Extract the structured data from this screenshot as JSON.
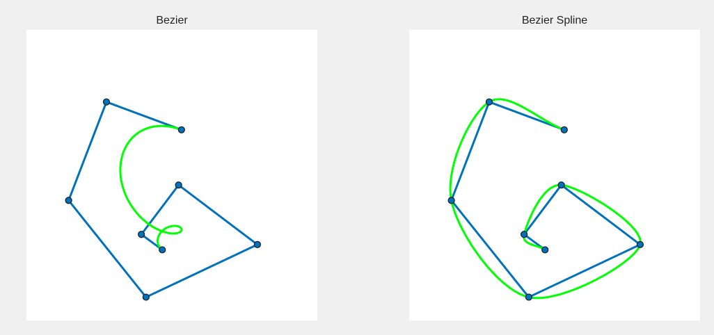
{
  "figure": {
    "background": "#f0f0f0",
    "axes_background": "#ffffff"
  },
  "chart_data": [
    {
      "type": "line",
      "title": "Bezier",
      "grid": false,
      "xlim": [
        0,
        1
      ],
      "ylim": [
        0,
        1
      ],
      "series": [
        {
          "role": "control-polygon",
          "color": "#0072bd",
          "marker": "circle",
          "points": [
            [
              0.533,
              0.656
            ],
            [
              0.275,
              0.752
            ],
            [
              0.145,
              0.413
            ],
            [
              0.411,
              0.08
            ],
            [
              0.794,
              0.261
            ],
            [
              0.523,
              0.466
            ],
            [
              0.395,
              0.296
            ],
            [
              0.467,
              0.243
            ]
          ]
        },
        {
          "role": "bezier-curve",
          "color": "#00ff00",
          "points": "computed from control-polygon (single Bezier curve of degree 7)"
        }
      ]
    },
    {
      "type": "line",
      "title": "Bezier Spline",
      "grid": false,
      "xlim": [
        0,
        1
      ],
      "ylim": [
        0,
        1
      ],
      "series": [
        {
          "role": "control-polygon",
          "color": "#0072bd",
          "marker": "circle",
          "points": [
            [
              0.533,
              0.656
            ],
            [
              0.275,
              0.752
            ],
            [
              0.145,
              0.413
            ],
            [
              0.411,
              0.08
            ],
            [
              0.794,
              0.261
            ],
            [
              0.523,
              0.466
            ],
            [
              0.395,
              0.296
            ],
            [
              0.467,
              0.243
            ]
          ]
        },
        {
          "role": "bezier-spline",
          "color": "#00ff00",
          "points": "interpolating spline through control-polygon points"
        }
      ]
    }
  ]
}
